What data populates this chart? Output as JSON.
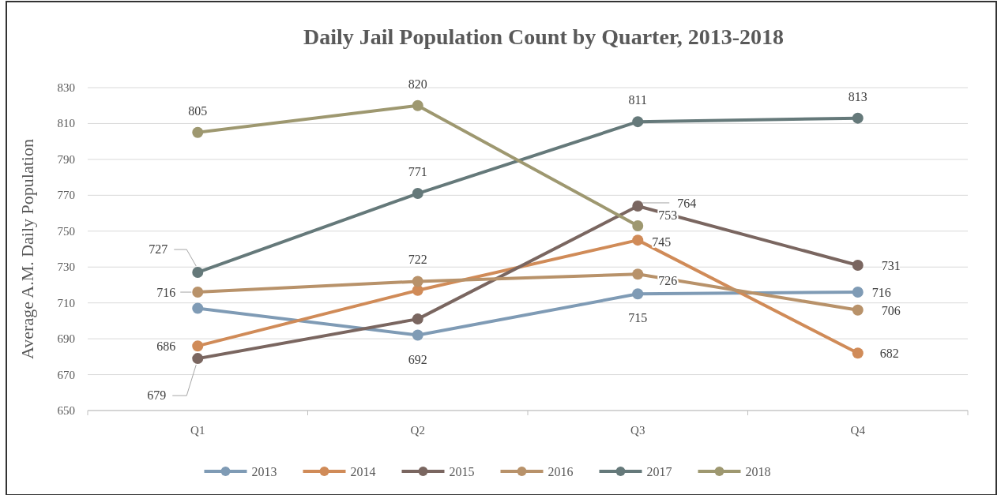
{
  "chart_data": {
    "type": "line",
    "title": "Daily Jail Population Count by Quarter, 2013-2018",
    "ylabel": "Average A.M. Daily Population",
    "categories": [
      "Q1",
      "Q2",
      "Q3",
      "Q4"
    ],
    "series": [
      {
        "name": "2013",
        "color": "#7f9bb5",
        "values": [
          707,
          692,
          715,
          716
        ],
        "value_labels": [
          null,
          "692",
          "715",
          "716"
        ]
      },
      {
        "name": "2014",
        "color": "#d08b58",
        "values": [
          686,
          717,
          745,
          682
        ],
        "value_labels": [
          "686",
          null,
          "745",
          "682"
        ]
      },
      {
        "name": "2015",
        "color": "#7a6660",
        "values": [
          679,
          701,
          764,
          731
        ],
        "value_labels": [
          "679",
          null,
          "764",
          "731"
        ]
      },
      {
        "name": "2016",
        "color": "#b8926a",
        "values": [
          716,
          722,
          726,
          706
        ],
        "value_labels": [
          "716",
          "722",
          "726",
          "706"
        ]
      },
      {
        "name": "2017",
        "color": "#65797a",
        "values": [
          727,
          771,
          811,
          813
        ],
        "value_labels": [
          "727",
          "771",
          "811",
          "813"
        ]
      },
      {
        "name": "2018",
        "color": "#9e9870",
        "values": [
          805,
          820,
          753,
          null
        ],
        "value_labels": [
          "805",
          "820",
          "753",
          null
        ]
      }
    ],
    "ylim": [
      650,
      830
    ],
    "yticks": [
      650,
      670,
      690,
      710,
      730,
      750,
      770,
      790,
      810,
      830
    ],
    "grid": "y",
    "legend": "bottom",
    "marker": "circle",
    "line_style": "solid"
  }
}
